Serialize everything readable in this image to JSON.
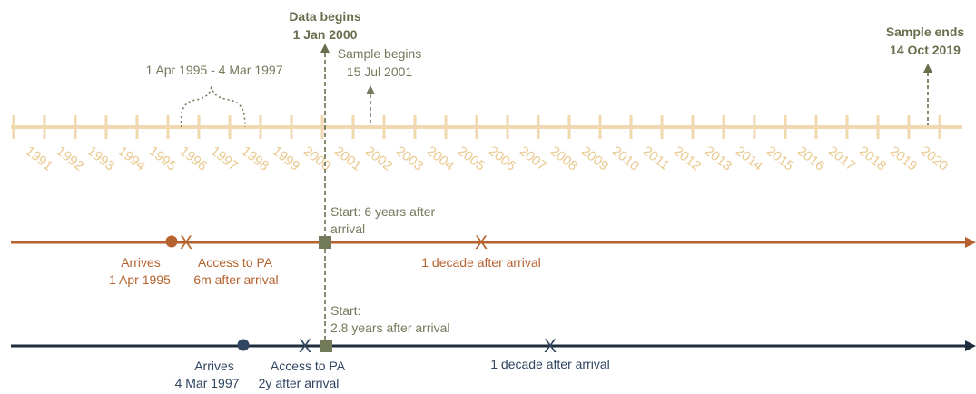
{
  "colors": {
    "axis": "#f0d9b0",
    "year_label": "#e9c98f",
    "annotation_gray": "#75785a",
    "annotation_dark": "#6a6e4e",
    "orange": "#b5622e",
    "navy": "#1f2d3d",
    "blue_text": "#2f4561",
    "marker_green": "#737a5a"
  },
  "timeline": {
    "years": [
      "1991",
      "1992",
      "1993",
      "1994",
      "1995",
      "1996",
      "1997",
      "1998",
      "1999",
      "2000",
      "2001",
      "2002",
      "2003",
      "2004",
      "2005",
      "2006",
      "2007",
      "2008",
      "2009",
      "2010",
      "2011",
      "2012",
      "2013",
      "2014",
      "2015",
      "2016",
      "2017",
      "2018",
      "2019",
      "2020"
    ],
    "data_begins": {
      "title": "Data begins",
      "date": "1 Jan 2000"
    },
    "sample_begins": {
      "title": "Sample begins",
      "date": "15 Jul 2001"
    },
    "sample_ends": {
      "title": "Sample ends",
      "date": "14 Oct 2019"
    },
    "range_label": "1 Apr 1995 - 4 Mar 1997"
  },
  "person1": {
    "arrives_label": "Arrives",
    "arrives_date": "1 Apr 1995",
    "access_line1": "Access to PA",
    "access_line2": "6m after arrival",
    "start_line1": "Start: 6 years after",
    "start_line2": "arrival",
    "decade_label": "1 decade after arrival"
  },
  "person2": {
    "arrives_label": "Arrives",
    "arrives_date": "4 Mar 1997",
    "access_line1": "Access to PA",
    "access_line2": "2y after arrival",
    "start_line1": "Start:",
    "start_line2": "2.8 years after arrival",
    "decade_label": "1 decade after arrival"
  }
}
